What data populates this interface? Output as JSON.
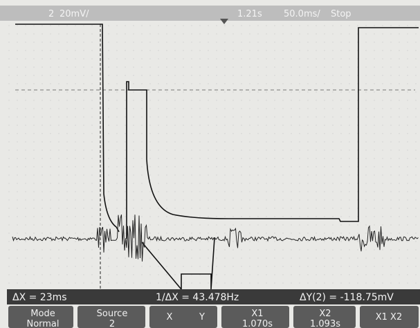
{
  "header": {
    "channel": "2",
    "scale": "20mV/",
    "time": "1.21s",
    "timebase": "50.0ms/",
    "status": "Stop"
  },
  "measurements": {
    "delta_x": "ΔX = 23ms",
    "inverse_delta_x": "1/ΔX = 43.478Hz",
    "delta_y": "ΔY(2) = -118.75mV"
  },
  "softkeys": [
    {
      "label": "Mode",
      "value": "Normal"
    },
    {
      "label": "Source",
      "value": "2"
    },
    {
      "x": "X",
      "y": "Y"
    },
    {
      "label": "X1",
      "value": "1.070s"
    },
    {
      "label": "X2",
      "value": "1.093s"
    },
    {
      "label": "X1 X2"
    }
  ]
}
